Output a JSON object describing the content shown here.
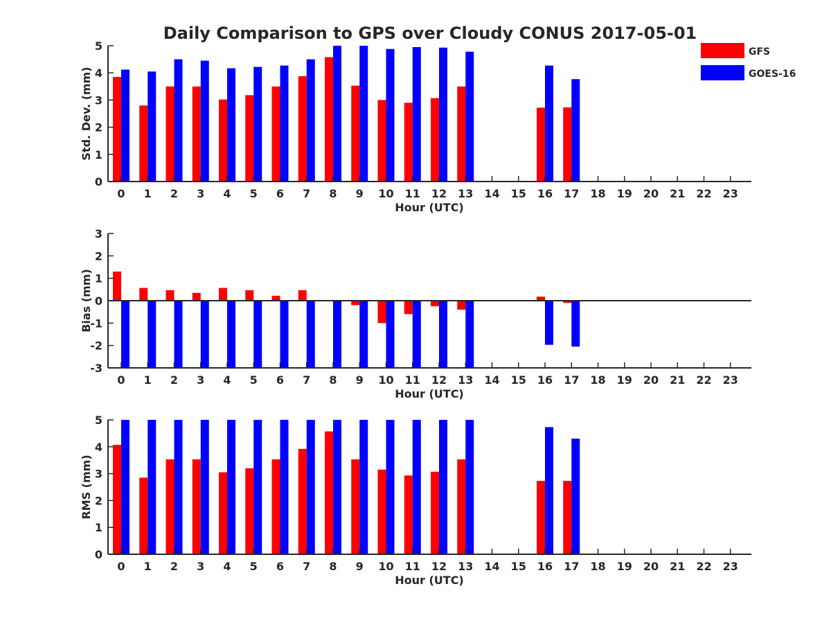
{
  "title": "Daily Comparison to GPS over Cloudy CONUS 2017-05-01",
  "legend": [
    {
      "name": "GFS",
      "color": "#ff0000"
    },
    {
      "name": "GOES-16",
      "color": "#0000ff"
    }
  ],
  "chart_data": [
    {
      "type": "bar",
      "ylabel": "Std. Dev. (mm)",
      "xlabel": "Hour (UTC)",
      "categories": [
        "0",
        "1",
        "2",
        "3",
        "4",
        "5",
        "6",
        "7",
        "8",
        "9",
        "10",
        "11",
        "12",
        "13",
        "14",
        "15",
        "16",
        "17",
        "18",
        "19",
        "20",
        "21",
        "22",
        "23"
      ],
      "ylim": [
        0,
        5
      ],
      "yticks": [
        "0",
        "1",
        "2",
        "3",
        "4",
        "5"
      ],
      "series": [
        {
          "name": "GFS",
          "color": "#ff0000",
          "values": [
            3.85,
            2.8,
            3.5,
            3.5,
            3.02,
            3.18,
            3.5,
            3.88,
            4.58,
            3.53,
            3.0,
            2.9,
            3.07,
            3.5,
            null,
            null,
            2.72,
            2.73,
            null,
            null,
            null,
            null,
            null,
            null
          ]
        },
        {
          "name": "GOES-16",
          "color": "#0000ff",
          "values": [
            4.12,
            4.05,
            4.5,
            4.45,
            4.17,
            4.22,
            4.27,
            4.5,
            5.0,
            5.0,
            4.88,
            4.95,
            4.93,
            4.78,
            null,
            null,
            4.27,
            3.77,
            null,
            null,
            null,
            null,
            null,
            null
          ]
        }
      ]
    },
    {
      "type": "bar",
      "ylabel": "Bias (mm)",
      "xlabel": "Hour (UTC)",
      "categories": [
        "0",
        "1",
        "2",
        "3",
        "4",
        "5",
        "6",
        "7",
        "8",
        "9",
        "10",
        "11",
        "12",
        "13",
        "14",
        "15",
        "16",
        "17",
        "18",
        "19",
        "20",
        "21",
        "22",
        "23"
      ],
      "ylim": [
        -3,
        3
      ],
      "yticks": [
        "-3",
        "-2",
        "-1",
        "0",
        "1",
        "2",
        "3"
      ],
      "series": [
        {
          "name": "GFS",
          "color": "#ff0000",
          "values": [
            1.3,
            0.57,
            0.47,
            0.35,
            0.57,
            0.47,
            0.22,
            0.47,
            0.03,
            -0.2,
            -1.0,
            -0.6,
            -0.25,
            -0.4,
            null,
            null,
            0.18,
            -0.1,
            null,
            null,
            null,
            null,
            null,
            null
          ]
        },
        {
          "name": "GOES-16",
          "color": "#0000ff",
          "values": [
            -3.0,
            -3.0,
            -3.0,
            -3.0,
            -3.0,
            -3.0,
            -3.0,
            -3.0,
            -3.0,
            -3.0,
            -3.0,
            -3.0,
            -3.0,
            -3.0,
            null,
            null,
            -1.97,
            -2.05,
            null,
            null,
            null,
            null,
            null,
            null
          ]
        }
      ]
    },
    {
      "type": "bar",
      "ylabel": "RMS (mm)",
      "xlabel": "Hour (UTC)",
      "categories": [
        "0",
        "1",
        "2",
        "3",
        "4",
        "5",
        "6",
        "7",
        "8",
        "9",
        "10",
        "11",
        "12",
        "13",
        "14",
        "15",
        "16",
        "17",
        "18",
        "19",
        "20",
        "21",
        "22",
        "23"
      ],
      "ylim": [
        0,
        5
      ],
      "yticks": [
        "0",
        "1",
        "2",
        "3",
        "4",
        "5"
      ],
      "series": [
        {
          "name": "GFS",
          "color": "#ff0000",
          "values": [
            4.07,
            2.85,
            3.53,
            3.53,
            3.05,
            3.2,
            3.53,
            3.92,
            4.57,
            3.53,
            3.15,
            2.93,
            3.07,
            3.53,
            null,
            null,
            2.73,
            2.73,
            null,
            null,
            null,
            null,
            null,
            null
          ]
        },
        {
          "name": "GOES-16",
          "color": "#0000ff",
          "values": [
            5.0,
            5.0,
            5.0,
            5.0,
            5.0,
            5.0,
            5.0,
            5.0,
            5.0,
            5.0,
            5.0,
            5.0,
            5.0,
            5.0,
            null,
            null,
            4.73,
            4.3,
            null,
            null,
            null,
            null,
            null,
            null
          ]
        }
      ]
    }
  ]
}
